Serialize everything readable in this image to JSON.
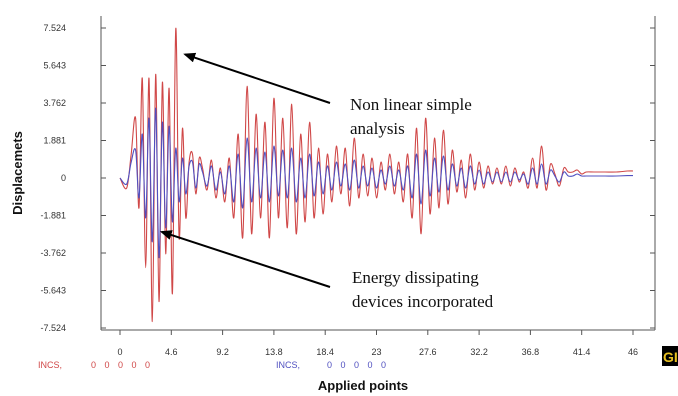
{
  "chart_data": {
    "type": "line",
    "title": "",
    "xlabel": "Applied points",
    "ylabel": "Displacemets",
    "xlim": [
      0,
      46
    ],
    "ylim": [
      -7.524,
      7.524
    ],
    "x_ticks": [
      "0",
      "4.6",
      "9.2",
      "13.8",
      "18.4",
      "23",
      "27.6",
      "32.2",
      "36.8",
      "41.4",
      "46"
    ],
    "y_ticks": [
      "7.524",
      "5.643",
      "3.762",
      "1.881",
      "0",
      "-1.881",
      "-3.762",
      "-5.643",
      "-7.524"
    ],
    "grid": false,
    "series": [
      {
        "name": "INCS,",
        "legend_values": "0 0 0 0 0",
        "color": "#d04848",
        "x": [
          0,
          0.6,
          1.0,
          1.4,
          1.7,
          2.0,
          2.3,
          2.6,
          2.9,
          3.2,
          3.5,
          3.8,
          4.1,
          4.4,
          4.7,
          5.0,
          5.3,
          5.6,
          5.9,
          6.2,
          6.5,
          6.8,
          7.1,
          7.4,
          7.8,
          8.2,
          8.6,
          9.0,
          9.4,
          9.8,
          10.2,
          10.6,
          11.0,
          11.4,
          11.8,
          12.2,
          12.6,
          13.0,
          13.4,
          13.8,
          14.2,
          14.6,
          15.0,
          15.4,
          15.8,
          16.2,
          16.6,
          17.0,
          17.4,
          17.8,
          18.2,
          18.6,
          19.0,
          19.4,
          19.8,
          20.2,
          20.6,
          21.0,
          21.4,
          21.8,
          22.2,
          22.6,
          23.0,
          23.4,
          23.8,
          24.2,
          24.6,
          25.0,
          25.4,
          25.8,
          26.2,
          26.6,
          27.0,
          27.4,
          27.8,
          28.2,
          28.6,
          29.0,
          29.4,
          29.8,
          30.2,
          30.6,
          31.0,
          31.4,
          31.8,
          32.2,
          32.6,
          33.0,
          33.4,
          33.8,
          34.2,
          34.6,
          35.0,
          35.4,
          35.8,
          36.2,
          36.6,
          37.0,
          37.4,
          37.8,
          38.2,
          38.6,
          39.0,
          39.4,
          39.8,
          40.2,
          40.6,
          41.0,
          41.4,
          41.8,
          42.5,
          43.5,
          44.5,
          45.5,
          46
        ],
        "y": [
          0,
          -0.5,
          1.2,
          3.0,
          -1.5,
          5.0,
          -4.5,
          5.0,
          -7.2,
          5.2,
          -6.2,
          4.8,
          -3.8,
          4.5,
          -5.8,
          7.5,
          -3.0,
          2.5,
          -2.0,
          0.8,
          1.2,
          -0.8,
          1.0,
          0.5,
          -0.6,
          0.9,
          -1.0,
          0.5,
          -1.2,
          1.0,
          -2.0,
          2.2,
          -3.0,
          4.6,
          -2.8,
          3.2,
          -2.0,
          2.8,
          -3.0,
          4.0,
          -2.0,
          3.0,
          -2.5,
          3.7,
          -2.8,
          2.2,
          -2.2,
          2.8,
          -2.0,
          1.5,
          -1.8,
          1.2,
          -1.2,
          1.6,
          -0.8,
          1.5,
          -1.4,
          2.0,
          -1.0,
          1.2,
          -0.9,
          1.0,
          -1.0,
          0.8,
          -0.6,
          1.2,
          -0.8,
          0.8,
          -1.2,
          1.2,
          -2.0,
          2.5,
          -2.8,
          3.0,
          -1.8,
          2.0,
          -1.5,
          2.4,
          -1.3,
          1.4,
          -0.7,
          0.9,
          -1.0,
          1.2,
          -0.6,
          0.8,
          -0.5,
          0.6,
          -0.3,
          0.5,
          -0.3,
          0.6,
          -0.4,
          0.5,
          -0.2,
          0.3,
          -0.5,
          1.0,
          -0.5,
          1.6,
          -0.6,
          0.7,
          0.2,
          -0.4,
          0.5,
          0.3,
          0.3,
          0.4,
          0.2,
          0.3,
          0.3,
          0.3,
          0.3,
          0.35,
          0.35
        ]
      },
      {
        "name": "INCS,",
        "legend_values": "0 0 0 0 0",
        "color": "#5050c0",
        "x": [
          0,
          0.6,
          1.0,
          1.4,
          1.7,
          2.0,
          2.3,
          2.6,
          2.9,
          3.2,
          3.5,
          3.8,
          4.1,
          4.4,
          4.7,
          5.0,
          5.3,
          5.6,
          5.9,
          6.2,
          6.5,
          6.8,
          7.1,
          7.4,
          7.8,
          8.2,
          8.6,
          9.0,
          9.4,
          9.8,
          10.2,
          10.6,
          11.0,
          11.4,
          11.8,
          12.2,
          12.6,
          13.0,
          13.4,
          13.8,
          14.2,
          14.6,
          15.0,
          15.4,
          15.8,
          16.2,
          16.6,
          17.0,
          17.4,
          17.8,
          18.2,
          18.6,
          19.0,
          19.4,
          19.8,
          20.2,
          20.6,
          21.0,
          21.4,
          21.8,
          22.2,
          22.6,
          23.0,
          23.4,
          23.8,
          24.2,
          24.6,
          25.0,
          25.4,
          25.8,
          26.2,
          26.6,
          27.0,
          27.4,
          27.8,
          28.2,
          28.6,
          29.0,
          29.4,
          29.8,
          30.2,
          30.6,
          31.0,
          31.4,
          31.8,
          32.2,
          32.6,
          33.0,
          33.4,
          33.8,
          34.2,
          34.6,
          35.0,
          35.4,
          35.8,
          36.2,
          36.6,
          37.0,
          37.4,
          37.8,
          38.2,
          38.6,
          39.0,
          39.4,
          39.8,
          40.2,
          40.6,
          41.0,
          41.4,
          41.8,
          42.5,
          43.5,
          44.5,
          45.5,
          46
        ],
        "y": [
          0,
          -0.3,
          0.8,
          1.4,
          -1.0,
          2.2,
          -2.0,
          3.0,
          -3.2,
          3.5,
          -4.0,
          2.8,
          -2.5,
          2.6,
          -2.2,
          1.5,
          -1.2,
          1.0,
          -0.8,
          0.6,
          0.8,
          -0.5,
          0.7,
          0.3,
          -0.4,
          0.6,
          -0.6,
          0.3,
          -0.8,
          0.6,
          -1.2,
          1.2,
          -1.5,
          2.0,
          -1.2,
          1.5,
          -1.0,
          1.3,
          -1.2,
          1.6,
          -0.9,
          1.4,
          -1.0,
          1.5,
          -1.2,
          1.0,
          -1.0,
          1.2,
          -0.9,
          0.8,
          -0.8,
          0.6,
          -0.6,
          0.8,
          -0.4,
          0.7,
          -0.6,
          0.9,
          -0.5,
          0.6,
          -0.4,
          0.5,
          -0.5,
          0.4,
          -0.3,
          0.6,
          -0.4,
          0.4,
          -0.6,
          0.6,
          -1.0,
          1.2,
          -1.3,
          1.4,
          -0.9,
          1.0,
          -0.7,
          1.1,
          -0.6,
          0.7,
          -0.4,
          0.5,
          -0.5,
          0.6,
          -0.3,
          0.4,
          -0.3,
          0.3,
          -0.2,
          0.3,
          -0.2,
          0.3,
          -0.2,
          0.3,
          -0.1,
          0.2,
          -0.3,
          0.5,
          -0.3,
          0.7,
          -0.3,
          0.4,
          0.1,
          -0.2,
          0.3,
          0.1,
          0.1,
          0.2,
          0.1,
          0.1,
          0.1,
          0.1,
          0.1,
          0.12,
          0.12
        ]
      }
    ],
    "annotations": [
      {
        "lines": [
          "Non linear simple",
          "analysis"
        ],
        "target_x": 5.3,
        "target_y": 6.2
      },
      {
        "lines": [
          "Energy dissipating",
          "devices incorporated"
        ],
        "target_x": 3.2,
        "target_y": -2.7
      }
    ]
  },
  "logo_text": "GI"
}
